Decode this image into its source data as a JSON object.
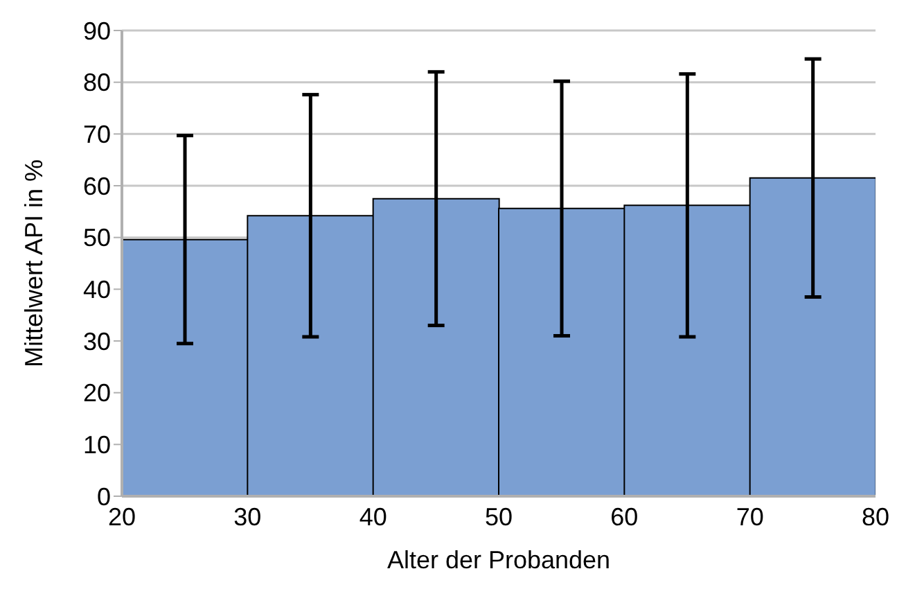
{
  "chart_data": {
    "type": "histogram",
    "xlabel": "Alter der Probanden",
    "ylabel": "Mittelwert API in %",
    "bins": [
      20,
      30,
      40,
      50,
      60,
      70,
      80
    ],
    "values": [
      49.6,
      54.2,
      57.5,
      55.6,
      56.2,
      61.5
    ],
    "errors": [
      20.1,
      23.4,
      24.5,
      24.6,
      25.4,
      23
    ],
    "color": "#7b9fd2",
    "xlim": [
      20,
      80
    ],
    "xticks": [
      20,
      30,
      40,
      50,
      60,
      70,
      80
    ],
    "ylim": [
      0,
      90
    ],
    "yticks": [
      0,
      10,
      20,
      30,
      40,
      50,
      60,
      70,
      80,
      90
    ],
    "grid": "y",
    "legend": false
  }
}
